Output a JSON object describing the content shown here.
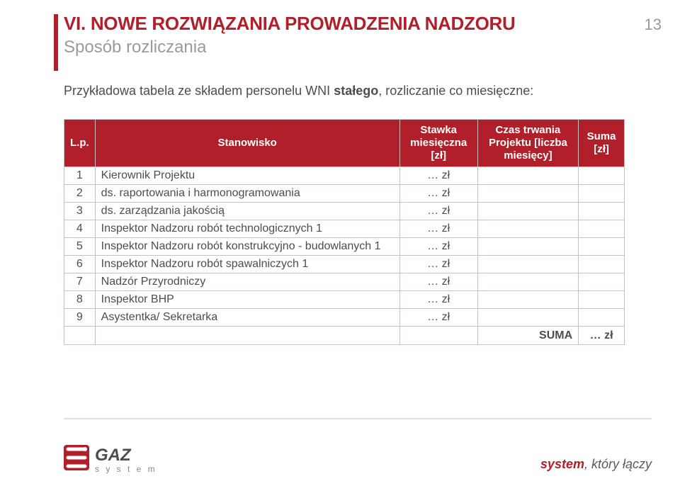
{
  "page_number": "13",
  "header": {
    "title_prefix": "VI. ",
    "title": "NOWE ROZWIĄZANIA PROWADZENIA NADZORU",
    "subtitle": "Sposób rozliczania"
  },
  "intro": {
    "pre": "Przykładowa tabela ze składem personelu WNI ",
    "bold": "stałego",
    "post": ", rozliczanie co miesięczne:"
  },
  "table": {
    "headers": {
      "lp": "L.p.",
      "stanowisko": "Stanowisko",
      "stawka": "Stawka miesięczna [zł]",
      "czas": "Czas trwania Projektu [liczba miesięcy]",
      "suma": "Suma [zł]"
    },
    "rows": [
      {
        "lp": "1",
        "name": "Kierownik Projektu",
        "val": "… zł"
      },
      {
        "lp": "2",
        "name": "ds. raportowania i harmonogramowania",
        "val": "… zł"
      },
      {
        "lp": "3",
        "name": "ds. zarządzania jakością",
        "val": "… zł"
      },
      {
        "lp": "4",
        "name": "Inspektor Nadzoru robót technologicznych 1",
        "val": "… zł"
      },
      {
        "lp": "5",
        "name": "Inspektor Nadzoru robót konstrukcyjno - budowlanych 1",
        "val": "… zł"
      },
      {
        "lp": "6",
        "name": "Inspektor Nadzoru robót spawalniczych 1",
        "val": "… zł"
      },
      {
        "lp": "7",
        "name": "Nadzór Przyrodniczy",
        "val": "… zł"
      },
      {
        "lp": "8",
        "name": "Inspektor BHP",
        "val": "… zł"
      },
      {
        "lp": "9",
        "name": "Asystentka/ Sekretarka",
        "val": "… zł"
      }
    ],
    "suma_label": "SUMA",
    "suma_value": "… zł"
  },
  "footer": {
    "logo_text_top": "GAZ",
    "logo_text_bottom": "s y s t e m",
    "tagline_bold": "system",
    "tagline_rest": ", który łączy"
  },
  "colors": {
    "brand_red": "#b11f2a",
    "text_gray": "#4d4d4d",
    "light_gray": "#9a9a9a",
    "border": "#c8c0c0",
    "rule": "#e0e0e0",
    "bg": "#ffffff"
  }
}
